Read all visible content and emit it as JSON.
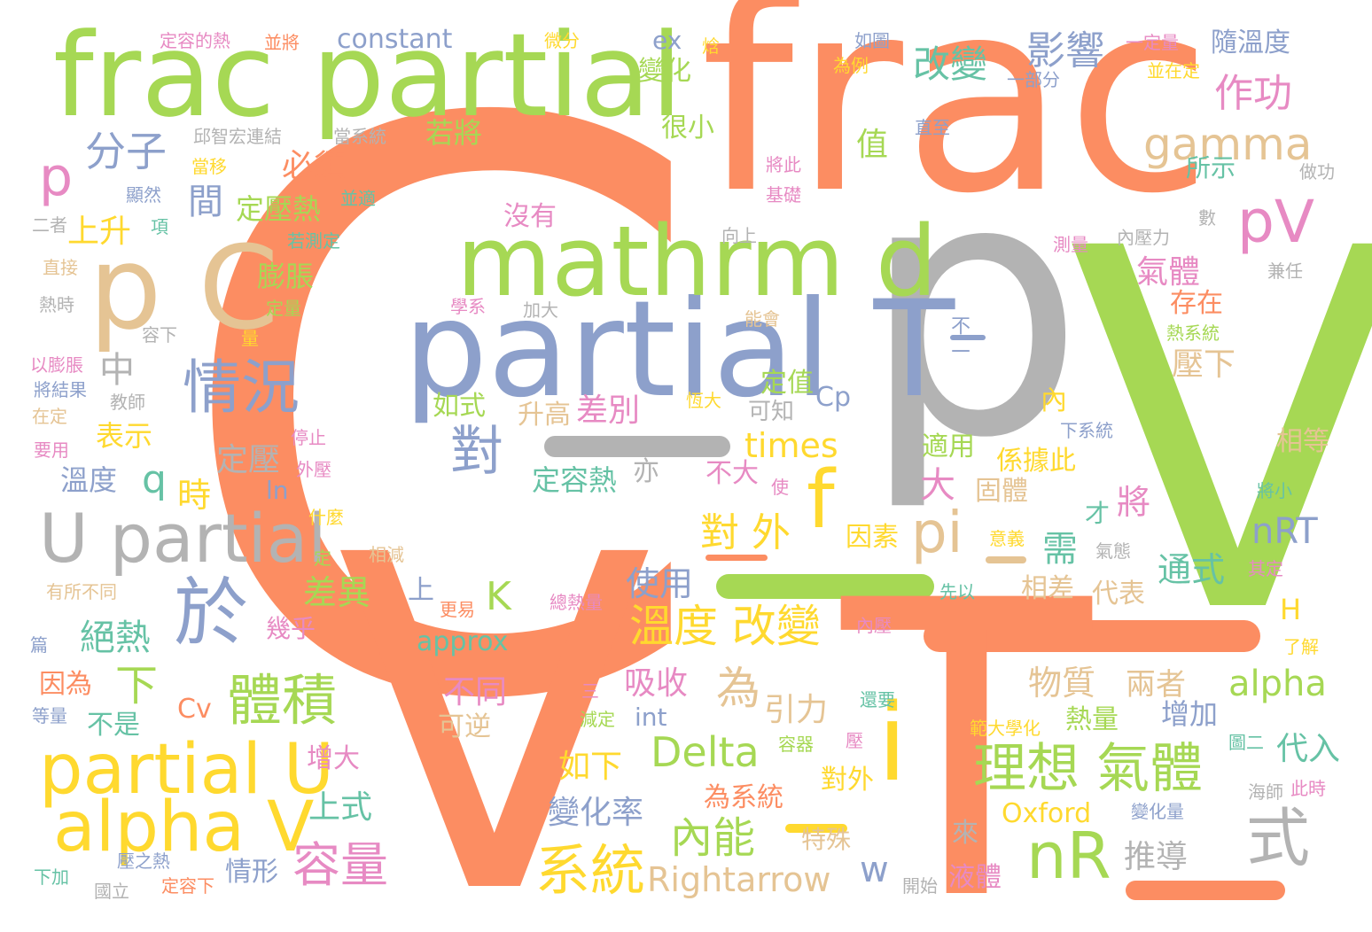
{
  "colors": {
    "orange": "#fc8d62",
    "green": "#a6d854",
    "gray": "#b3b3b3",
    "blue": "#8da0cb",
    "tan": "#e5c494",
    "yellow": "#ffd92f",
    "pink": "#e78ac3",
    "teal": "#66c2a5"
  },
  "words": [
    {
      "text": "C",
      "color": "orange"
    },
    {
      "text": "p",
      "color": "gray"
    },
    {
      "text": "V",
      "color": "green"
    },
    {
      "text": "V",
      "color": "orange"
    },
    {
      "text": "frac",
      "color": "orange"
    },
    {
      "text": "T",
      "color": "orange"
    },
    {
      "text": "frac partial",
      "color": "green"
    },
    {
      "text": "partial T",
      "color": "blue"
    },
    {
      "text": "mathrm d",
      "color": "green"
    },
    {
      "text": "p C",
      "color": "tan"
    },
    {
      "text": "U partial",
      "color": "gray"
    },
    {
      "text": "partial U",
      "color": "yellow"
    },
    {
      "text": "alpha V",
      "color": "yellow"
    },
    {
      "text": "於",
      "color": "blue"
    },
    {
      "text": "情況",
      "color": "blue"
    },
    {
      "text": "體積",
      "color": "green"
    },
    {
      "text": "理想 氣體",
      "color": "green"
    },
    {
      "text": "nR",
      "color": "green"
    },
    {
      "text": "式",
      "color": "gray"
    },
    {
      "text": "系統",
      "color": "yellow"
    },
    {
      "text": "容量",
      "color": "pink"
    },
    {
      "text": "內能",
      "color": "green"
    },
    {
      "text": "溫度 改變",
      "color": "yellow"
    },
    {
      "text": "i",
      "color": "yellow"
    },
    {
      "text": "f",
      "color": "yellow"
    },
    {
      "text": "pi",
      "color": "tan"
    },
    {
      "text": "pV",
      "color": "pink"
    },
    {
      "text": "gamma",
      "color": "tan"
    },
    {
      "text": "作功",
      "color": "pink"
    },
    {
      "text": "影響",
      "color": "blue"
    },
    {
      "text": "改變",
      "color": "teal"
    },
    {
      "text": "分子",
      "color": "blue"
    },
    {
      "text": "p",
      "color": "pink"
    },
    {
      "text": "對",
      "color": "blue"
    },
    {
      "text": "Delta",
      "color": "green"
    },
    {
      "text": "alpha",
      "color": "green"
    },
    {
      "text": "nRT",
      "color": "blue"
    },
    {
      "text": "times",
      "color": "yellow"
    },
    {
      "text": "Rightarrow",
      "color": "tan"
    },
    {
      "text": "approx",
      "color": "teal"
    },
    {
      "text": "constant",
      "color": "blue"
    },
    {
      "text": "Oxford",
      "color": "yellow"
    },
    {
      "text": "Cp",
      "color": "blue"
    },
    {
      "text": "Cv",
      "color": "orange"
    },
    {
      "text": "K",
      "color": "green"
    },
    {
      "text": "q",
      "color": "teal"
    },
    {
      "text": "w",
      "color": "blue"
    },
    {
      "text": "H",
      "color": "yellow"
    },
    {
      "text": "ln",
      "color": "blue"
    },
    {
      "text": "int",
      "color": "blue"
    },
    {
      "text": "ex",
      "color": "blue"
    },
    {
      "text": "為",
      "color": "tan"
    },
    {
      "text": "下",
      "color": "green"
    },
    {
      "text": "中",
      "color": "gray"
    },
    {
      "text": "間",
      "color": "blue"
    },
    {
      "text": "值",
      "color": "green"
    },
    {
      "text": "時",
      "color": "yellow"
    },
    {
      "text": "亦",
      "color": "gray"
    },
    {
      "text": "大",
      "color": "pink"
    },
    {
      "text": "需",
      "color": "teal"
    },
    {
      "text": "來",
      "color": "gray"
    },
    {
      "text": "內",
      "color": "yellow"
    },
    {
      "text": "上",
      "color": "blue"
    },
    {
      "text": "上升",
      "color": "yellow"
    },
    {
      "text": "必須",
      "color": "orange"
    },
    {
      "text": "若將",
      "color": "green"
    },
    {
      "text": "定壓熱",
      "color": "green"
    },
    {
      "text": "膨脹",
      "color": "green"
    },
    {
      "text": "表示",
      "color": "yellow"
    },
    {
      "text": "定壓",
      "color": "gray"
    },
    {
      "text": "溫度",
      "color": "blue"
    },
    {
      "text": "差別",
      "color": "pink"
    },
    {
      "text": "升高",
      "color": "tan"
    },
    {
      "text": "如式",
      "color": "green"
    },
    {
      "text": "定容熱",
      "color": "teal"
    },
    {
      "text": "對 外",
      "color": "yellow"
    },
    {
      "text": "差異",
      "color": "green"
    },
    {
      "text": "使用",
      "color": "blue"
    },
    {
      "text": "絕熱",
      "color": "teal"
    },
    {
      "text": "吸收",
      "color": "pink"
    },
    {
      "text": "引力",
      "color": "tan"
    },
    {
      "text": "不同",
      "color": "pink"
    },
    {
      "text": "可逆",
      "color": "tan"
    },
    {
      "text": "物質",
      "color": "tan"
    },
    {
      "text": "兩者",
      "color": "tan"
    },
    {
      "text": "熱量",
      "color": "green"
    },
    {
      "text": "增加",
      "color": "blue"
    },
    {
      "text": "代入",
      "color": "teal"
    },
    {
      "text": "因為",
      "color": "orange"
    },
    {
      "text": "不是",
      "color": "teal"
    },
    {
      "text": "增大",
      "color": "pink"
    },
    {
      "text": "上式",
      "color": "teal"
    },
    {
      "text": "如下",
      "color": "yellow"
    },
    {
      "text": "變化率",
      "color": "blue"
    },
    {
      "text": "推導",
      "color": "gray"
    },
    {
      "text": "液體",
      "color": "pink"
    },
    {
      "text": "情形",
      "color": "blue"
    },
    {
      "text": "對外",
      "color": "yellow"
    },
    {
      "text": "為系統",
      "color": "orange"
    },
    {
      "text": "特殊",
      "color": "tan"
    },
    {
      "text": "氣體",
      "color": "pink"
    },
    {
      "text": "存在",
      "color": "orange"
    },
    {
      "text": "壓下",
      "color": "tan"
    },
    {
      "text": "所示",
      "color": "teal"
    },
    {
      "text": "隨溫度",
      "color": "blue"
    },
    {
      "text": "變化",
      "color": "green"
    },
    {
      "text": "很小",
      "color": "green"
    },
    {
      "text": "沒有",
      "color": "pink"
    },
    {
      "text": "定值",
      "color": "green"
    },
    {
      "text": "可知",
      "color": "gray"
    },
    {
      "text": "不大",
      "color": "pink"
    },
    {
      "text": "適用",
      "color": "green"
    },
    {
      "text": "係據此",
      "color": "yellow"
    },
    {
      "text": "固體",
      "color": "tan"
    },
    {
      "text": "因素",
      "color": "yellow"
    },
    {
      "text": "才",
      "color": "teal"
    },
    {
      "text": "將",
      "color": "pink"
    },
    {
      "text": "通式",
      "color": "teal"
    },
    {
      "text": "相差",
      "color": "tan"
    },
    {
      "text": "代表",
      "color": "tan"
    },
    {
      "text": "相等",
      "color": "tan"
    },
    {
      "text": "幾乎",
      "color": "pink"
    },
    {
      "text": "不二",
      "color": "blue"
    },
    {
      "text": "定容的熱",
      "color": "pink"
    },
    {
      "text": "並將",
      "color": "orange"
    },
    {
      "text": "微分",
      "color": "yellow"
    },
    {
      "text": "焓",
      "color": "yellow"
    },
    {
      "text": "如圖",
      "color": "blue"
    },
    {
      "text": "一定量",
      "color": "pink"
    },
    {
      "text": "並在定",
      "color": "yellow"
    },
    {
      "text": "為例",
      "color": "yellow"
    },
    {
      "text": "一部分",
      "color": "blue"
    },
    {
      "text": "邱智宏連結",
      "color": "gray"
    },
    {
      "text": "當系統",
      "color": "gray"
    },
    {
      "text": "直至",
      "color": "blue"
    },
    {
      "text": "當移",
      "color": "yellow"
    },
    {
      "text": "顯然",
      "color": "blue"
    },
    {
      "text": "並適",
      "color": "teal"
    },
    {
      "text": "將此",
      "color": "pink"
    },
    {
      "text": "基礎",
      "color": "pink"
    },
    {
      "text": "做功",
      "color": "gray"
    },
    {
      "text": "二者",
      "color": "gray"
    },
    {
      "text": "項",
      "color": "teal"
    },
    {
      "text": "若測定",
      "color": "teal"
    },
    {
      "text": "向上",
      "color": "gray"
    },
    {
      "text": "數",
      "color": "gray"
    },
    {
      "text": "測量",
      "color": "pink"
    },
    {
      "text": "內壓力",
      "color": "gray"
    },
    {
      "text": "直接",
      "color": "tan"
    },
    {
      "text": "兼任",
      "color": "gray"
    },
    {
      "text": "熱時",
      "color": "gray"
    },
    {
      "text": "定量",
      "color": "green"
    },
    {
      "text": "學系",
      "color": "pink"
    },
    {
      "text": "加大",
      "color": "gray"
    },
    {
      "text": "容下",
      "color": "gray"
    },
    {
      "text": "量",
      "color": "yellow"
    },
    {
      "text": "能會",
      "color": "tan"
    },
    {
      "text": "熱系統",
      "color": "green"
    },
    {
      "text": "以膨脹",
      "color": "pink"
    },
    {
      "text": "將結果",
      "color": "blue"
    },
    {
      "text": "教師",
      "color": "gray"
    },
    {
      "text": "恆大",
      "color": "yellow"
    },
    {
      "text": "在定",
      "color": "tan"
    },
    {
      "text": "停止",
      "color": "pink"
    },
    {
      "text": "下系統",
      "color": "blue"
    },
    {
      "text": "要用",
      "color": "pink"
    },
    {
      "text": "外壓",
      "color": "pink"
    },
    {
      "text": "使",
      "color": "pink"
    },
    {
      "text": "將小",
      "color": "teal"
    },
    {
      "text": "什麼",
      "color": "yellow"
    },
    {
      "text": "定",
      "color": "green"
    },
    {
      "text": "相減",
      "color": "tan"
    },
    {
      "text": "意義",
      "color": "yellow"
    },
    {
      "text": "氣態",
      "color": "gray"
    },
    {
      "text": "其定",
      "color": "pink"
    },
    {
      "text": "有所不同",
      "color": "tan"
    },
    {
      "text": "先以",
      "color": "teal"
    },
    {
      "text": "更易",
      "color": "orange"
    },
    {
      "text": "總熱量",
      "color": "pink"
    },
    {
      "text": "篇",
      "color": "blue"
    },
    {
      "text": "內壓",
      "color": "pink"
    },
    {
      "text": "了解",
      "color": "yellow"
    },
    {
      "text": "三",
      "color": "pink"
    },
    {
      "text": "等量",
      "color": "blue"
    },
    {
      "text": "減定",
      "color": "green"
    },
    {
      "text": "還要",
      "color": "teal"
    },
    {
      "text": "範大學化",
      "color": "yellow"
    },
    {
      "text": "容器",
      "color": "green"
    },
    {
      "text": "壓",
      "color": "pink"
    },
    {
      "text": "圖二",
      "color": "teal"
    },
    {
      "text": "海師",
      "color": "gray"
    },
    {
      "text": "此時",
      "color": "pink"
    },
    {
      "text": "變化量",
      "color": "blue"
    },
    {
      "text": "下加",
      "color": "teal"
    },
    {
      "text": "壓之熱",
      "color": "blue"
    },
    {
      "text": "國立",
      "color": "gray"
    },
    {
      "text": "定容下",
      "color": "orange"
    },
    {
      "text": "開始",
      "color": "gray"
    }
  ]
}
